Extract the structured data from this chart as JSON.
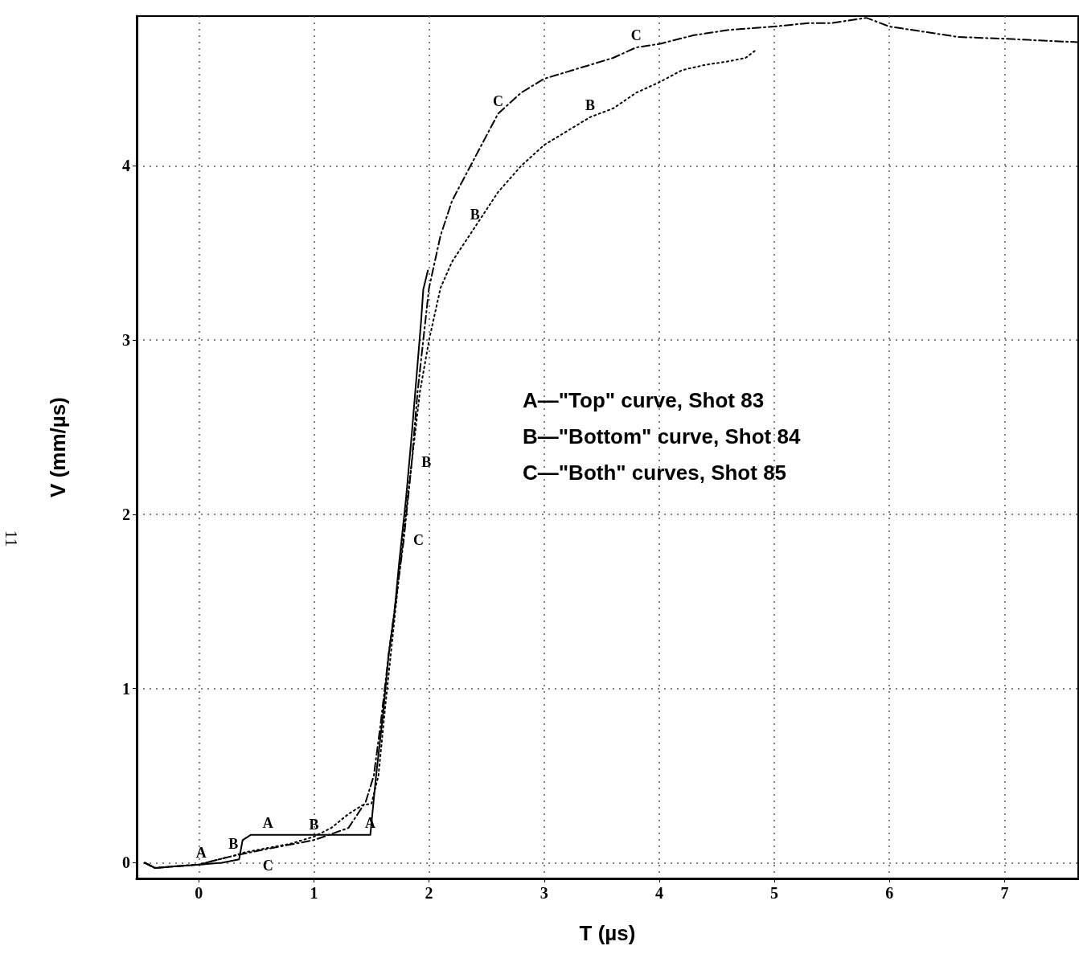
{
  "chart_data": {
    "type": "line",
    "xlabel": "T (µs)",
    "ylabel": "V (mm/µs)",
    "xlim": [
      -0.54,
      7.64
    ],
    "ylim": [
      -0.09,
      4.86
    ],
    "xticks": [
      0,
      1,
      2,
      3,
      4,
      5,
      6,
      7
    ],
    "yticks": [
      0,
      1,
      2,
      3,
      4
    ],
    "grid": true,
    "marker": "none",
    "series": [
      {
        "name": "A",
        "color": "#000000",
        "line_style": "solid",
        "x": [
          -0.47,
          -0.38,
          -0.2,
          0.02,
          0.2,
          0.35,
          0.38,
          0.45,
          0.6,
          1.0,
          1.3,
          1.49,
          1.54,
          1.6,
          1.65,
          1.7,
          1.74,
          1.8,
          1.85,
          1.89,
          1.93,
          1.95,
          1.99
        ],
        "values": [
          0.0,
          -0.03,
          -0.02,
          -0.01,
          0.0,
          0.02,
          0.13,
          0.16,
          0.16,
          0.16,
          0.16,
          0.16,
          0.5,
          0.85,
          1.2,
          1.44,
          1.72,
          2.09,
          2.46,
          2.78,
          3.1,
          3.29,
          3.4
        ]
      },
      {
        "name": "B",
        "color": "#000000",
        "line_style": "dotted",
        "x": [
          -0.47,
          -0.38,
          0.0,
          0.3,
          0.4,
          0.8,
          1.0,
          1.15,
          1.3,
          1.42,
          1.5,
          1.56,
          1.62,
          1.7,
          1.78,
          1.85,
          1.92,
          2.0,
          2.1,
          2.2,
          2.4,
          2.6,
          2.8,
          3.0,
          3.2,
          3.4,
          3.6,
          3.8,
          4.0,
          4.2,
          4.4,
          4.6,
          4.75,
          4.85
        ],
        "values": [
          0.0,
          -0.03,
          -0.01,
          0.04,
          0.06,
          0.11,
          0.15,
          0.2,
          0.28,
          0.33,
          0.34,
          0.5,
          0.9,
          1.4,
          1.9,
          2.3,
          2.7,
          3.0,
          3.3,
          3.45,
          3.65,
          3.85,
          4.0,
          4.12,
          4.2,
          4.28,
          4.33,
          4.42,
          4.48,
          4.55,
          4.58,
          4.6,
          4.62,
          4.67
        ]
      },
      {
        "name": "C",
        "color": "#000000",
        "line_style": "dashed",
        "x": [
          -0.47,
          -0.38,
          0.0,
          0.3,
          0.6,
          1.0,
          1.3,
          1.45,
          1.52,
          1.58,
          1.65,
          1.72,
          1.78,
          1.85,
          1.9,
          1.95,
          2.0,
          2.1,
          2.2,
          2.4,
          2.6,
          2.8,
          3.0,
          3.3,
          3.6,
          3.8,
          4.0,
          4.3,
          4.6,
          5.0,
          5.3,
          5.5,
          5.8,
          6.0,
          6.2,
          6.6,
          7.0,
          7.3,
          7.64
        ],
        "values": [
          0.0,
          -0.03,
          -0.01,
          0.04,
          0.08,
          0.13,
          0.2,
          0.35,
          0.5,
          0.8,
          1.2,
          1.55,
          1.85,
          2.3,
          2.7,
          3.0,
          3.3,
          3.6,
          3.8,
          4.05,
          4.3,
          4.42,
          4.5,
          4.56,
          4.62,
          4.68,
          4.7,
          4.75,
          4.78,
          4.8,
          4.82,
          4.82,
          4.85,
          4.8,
          4.78,
          4.74,
          4.73,
          4.72,
          4.71
        ]
      }
    ],
    "annotations": [
      "A—\"Top\" curve, Shot 83",
      "B—\"Bottom\" curve, Shot 84",
      "C—\"Both\" curves, Shot 85",
      "11"
    ]
  }
}
